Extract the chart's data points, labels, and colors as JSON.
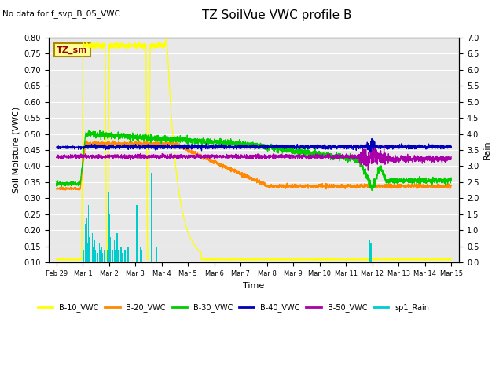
{
  "title": "TZ SoilVue VWC profile B",
  "subtitle": "No data for f_svp_B_05_VWC",
  "xlabel": "Time",
  "ylabel_left": "Soil Moisture (VWC)",
  "ylabel_right": "Rain",
  "ylim_left": [
    0.1,
    0.8
  ],
  "ylim_right": [
    0.0,
    7.0
  ],
  "yticks_left": [
    0.1,
    0.15,
    0.2,
    0.25,
    0.3,
    0.35,
    0.4,
    0.45,
    0.5,
    0.55,
    0.6,
    0.65,
    0.7,
    0.75,
    0.8
  ],
  "yticks_right": [
    0.0,
    0.5,
    1.0,
    1.5,
    2.0,
    2.5,
    3.0,
    3.5,
    4.0,
    4.5,
    5.0,
    5.5,
    6.0,
    6.5,
    7.0
  ],
  "colors": {
    "B10": "#ffff00",
    "B20": "#ff8800",
    "B30": "#00cc00",
    "B40": "#0000bb",
    "B50": "#aa00aa",
    "Rain": "#00cccc",
    "bg": "#e8e8e8",
    "annotation_bg": "#ffff99",
    "annotation_border": "#aa8800"
  },
  "annotation_text": "TZ_sm",
  "x_tick_labels": [
    "Feb 29",
    "Mar 1",
    "Mar 2",
    "Mar 3",
    "Mar 4",
    "Mar 5",
    "Mar 6",
    "Mar 7",
    "Mar 8",
    "Mar 9",
    "Mar 10",
    "Mar 11",
    "Mar 12",
    "Mar 13",
    "Mar 14",
    "Mar 15"
  ]
}
